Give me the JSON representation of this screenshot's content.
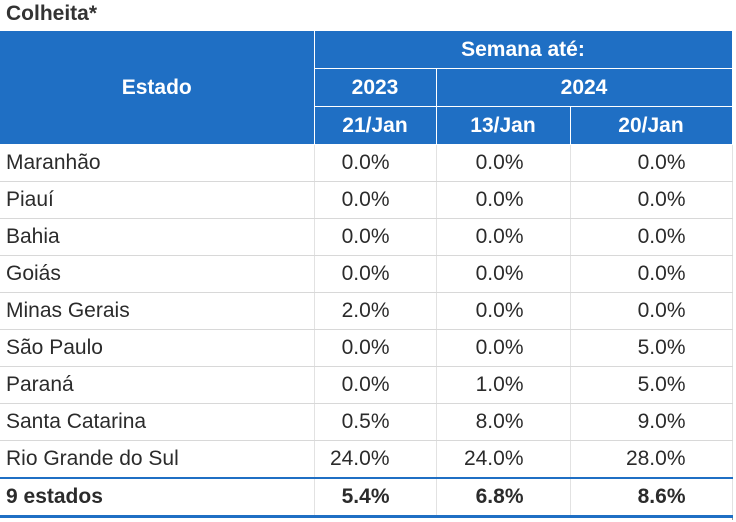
{
  "title": "Colheita*",
  "header": {
    "estado": "Estado",
    "semana": "Semana até:",
    "years": [
      "2023",
      "2024"
    ],
    "dates": [
      "21/Jan",
      "13/Jan",
      "20/Jan"
    ]
  },
  "chart_data": {
    "type": "table",
    "title": "Colheita*",
    "columns": [
      "Estado",
      "2023 21/Jan",
      "2024 13/Jan",
      "2024 20/Jan"
    ],
    "rows": [
      {
        "estado": "Maranhão",
        "values": [
          "0.0%",
          "0.0%",
          "0.0%"
        ]
      },
      {
        "estado": "Piauí",
        "values": [
          "0.0%",
          "0.0%",
          "0.0%"
        ]
      },
      {
        "estado": "Bahia",
        "values": [
          "0.0%",
          "0.0%",
          "0.0%"
        ]
      },
      {
        "estado": "Goiás",
        "values": [
          "0.0%",
          "0.0%",
          "0.0%"
        ]
      },
      {
        "estado": "Minas Gerais",
        "values": [
          "2.0%",
          "0.0%",
          "0.0%"
        ]
      },
      {
        "estado": "São Paulo",
        "values": [
          "0.0%",
          "0.0%",
          "5.0%"
        ]
      },
      {
        "estado": "Paraná",
        "values": [
          "0.0%",
          "1.0%",
          "5.0%"
        ]
      },
      {
        "estado": "Santa Catarina",
        "values": [
          "0.5%",
          "8.0%",
          "9.0%"
        ]
      },
      {
        "estado": "Rio Grande do Sul",
        "values": [
          "24.0%",
          "24.0%",
          "28.0%"
        ]
      }
    ],
    "total": {
      "estado": "9 estados",
      "values": [
        "5.4%",
        "6.8%",
        "8.6%"
      ]
    }
  },
  "colors": {
    "header_bg": "#1f6fc4",
    "header_text": "#ffffff",
    "text": "#2b2b2b"
  }
}
